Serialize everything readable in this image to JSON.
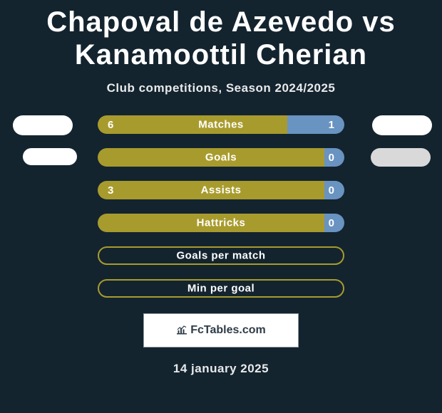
{
  "colors": {
    "background": "#13242f",
    "text_white": "#ffffff",
    "text_soft": "#e8e9ea",
    "bar_left": "#a89b2d",
    "bar_right": "#6993c0",
    "bar_empty_border": "#a89b2d",
    "badge_white": "#ffffff",
    "badge_gray": "#d9d9d9",
    "brand_border": "#8f9aa2",
    "brand_text": "#2e3c48"
  },
  "typography": {
    "title_size": 40,
    "subtitle_size": 17,
    "bar_label_size": 15,
    "bar_value_size": 15,
    "brand_size": 16,
    "date_size": 17
  },
  "title": "Chapoval de Azevedo vs Kanamoottil Cherian",
  "subtitle": "Club competitions, Season 2024/2025",
  "bars": [
    {
      "label": "Matches",
      "left_val": "6",
      "right_val": "1",
      "left_pct": 77,
      "right_pct": 23,
      "show_left": true,
      "show_right": true,
      "badges": "row1"
    },
    {
      "label": "Goals",
      "left_val": "",
      "right_val": "0",
      "left_pct": 92,
      "right_pct": 8,
      "show_left": false,
      "show_right": true,
      "badges": "row2"
    },
    {
      "label": "Assists",
      "left_val": "3",
      "right_val": "0",
      "left_pct": 92,
      "right_pct": 8,
      "show_left": true,
      "show_right": true,
      "badges": "none"
    },
    {
      "label": "Hattricks",
      "left_val": "",
      "right_val": "0",
      "left_pct": 92,
      "right_pct": 8,
      "show_left": false,
      "show_right": true,
      "badges": "none"
    },
    {
      "label": "Goals per match",
      "left_val": "",
      "right_val": "",
      "left_pct": 100,
      "right_pct": 0,
      "show_left": false,
      "show_right": false,
      "badges": "none",
      "empty": true
    },
    {
      "label": "Min per goal",
      "left_val": "",
      "right_val": "",
      "left_pct": 100,
      "right_pct": 0,
      "show_left": false,
      "show_right": false,
      "badges": "none",
      "empty": true
    }
  ],
  "brand": "FcTables.com",
  "date": "14 january 2025"
}
